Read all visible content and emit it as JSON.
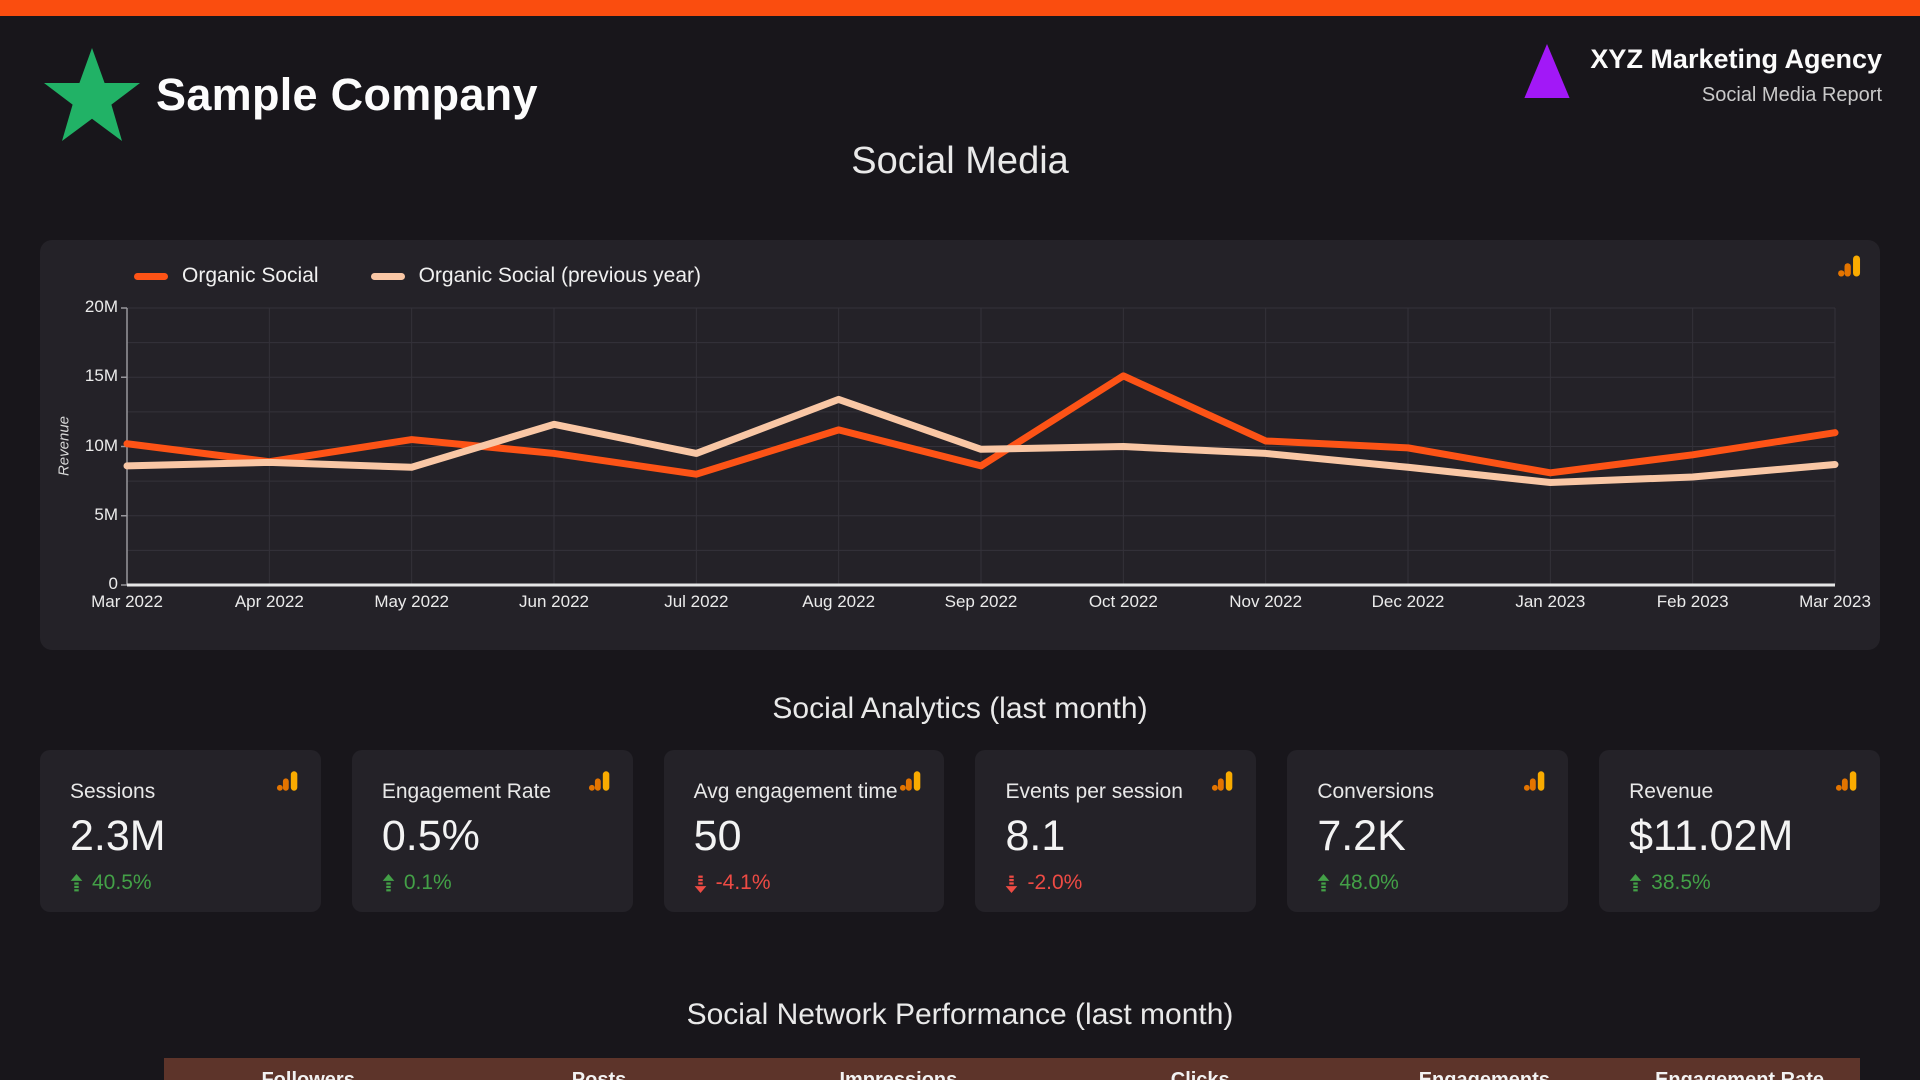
{
  "colors": {
    "accent_bar": "#fa4d0f",
    "page_bg": "#18161b",
    "panel_bg": "#242228",
    "grid_line": "#34323a",
    "y_axis_line": "#98979c",
    "x_axis_line": "#e6e6e6",
    "line_current": "#fd5316",
    "line_previous": "#f9c7a5",
    "delta_up": "#43a047",
    "delta_down": "#ee4b44",
    "star_green": "#21b266",
    "triangle_purple": "#a218f7",
    "ga_amber": "#f9ab00",
    "ga_orange": "#e37400",
    "table_header_bg": "#5d342a"
  },
  "header": {
    "company": "Sample Company",
    "agency": "XYZ Marketing Agency",
    "subtitle": "Social Media Report"
  },
  "page_title": "Social Media",
  "chart_data": {
    "type": "line",
    "title": "",
    "x": [
      "Mar 2022",
      "Apr 2022",
      "May 2022",
      "Jun 2022",
      "Jul 2022",
      "Aug 2022",
      "Sep 2022",
      "Oct 2022",
      "Nov 2022",
      "Dec 2022",
      "Jan 2023",
      "Feb 2023",
      "Mar 2023"
    ],
    "series": [
      {
        "name": "Organic Social",
        "color": "#fd5316",
        "values": [
          10200000,
          8900000,
          10500000,
          9500000,
          8000000,
          11200000,
          8600000,
          15100000,
          10400000,
          9900000,
          8100000,
          9400000,
          11000000
        ]
      },
      {
        "name": "Organic Social (previous year)",
        "color": "#f9c7a5",
        "values": [
          8600000,
          8850000,
          8500000,
          11600000,
          9500000,
          13400000,
          9800000,
          10000000,
          9500000,
          8500000,
          7400000,
          7800000,
          8700000
        ]
      }
    ],
    "xlabel": "",
    "ylabel": "Revenue",
    "ylim": [
      0,
      20000000
    ],
    "yticks": [
      {
        "value": 0,
        "label": "0"
      },
      {
        "value": 5000000,
        "label": "5M"
      },
      {
        "value": 10000000,
        "label": "10M"
      },
      {
        "value": 15000000,
        "label": "15M"
      },
      {
        "value": 20000000,
        "label": "20M"
      }
    ],
    "minor_grid_step": 2500000,
    "grid": true,
    "legend_position": "top-left"
  },
  "analytics": {
    "heading": "Social Analytics (last month)",
    "cards": [
      {
        "label": "Sessions",
        "value": "2.3M",
        "delta": "40.5%",
        "direction": "up"
      },
      {
        "label": "Engagement Rate",
        "value": "0.5%",
        "delta": "0.1%",
        "direction": "up"
      },
      {
        "label": "Avg engagement time",
        "value": "50",
        "delta": "-4.1%",
        "direction": "down"
      },
      {
        "label": "Events per session",
        "value": "8.1",
        "delta": "-2.0%",
        "direction": "down"
      },
      {
        "label": "Conversions",
        "value": "7.2K",
        "delta": "48.0%",
        "direction": "up"
      },
      {
        "label": "Revenue",
        "value": "$11.02M",
        "delta": "38.5%",
        "direction": "up"
      }
    ]
  },
  "network": {
    "heading": "Social Network Performance (last month)",
    "columns": [
      "Followers",
      "Posts",
      "Impressions",
      "Clicks",
      "Engagements",
      "Engagement Rate"
    ]
  }
}
